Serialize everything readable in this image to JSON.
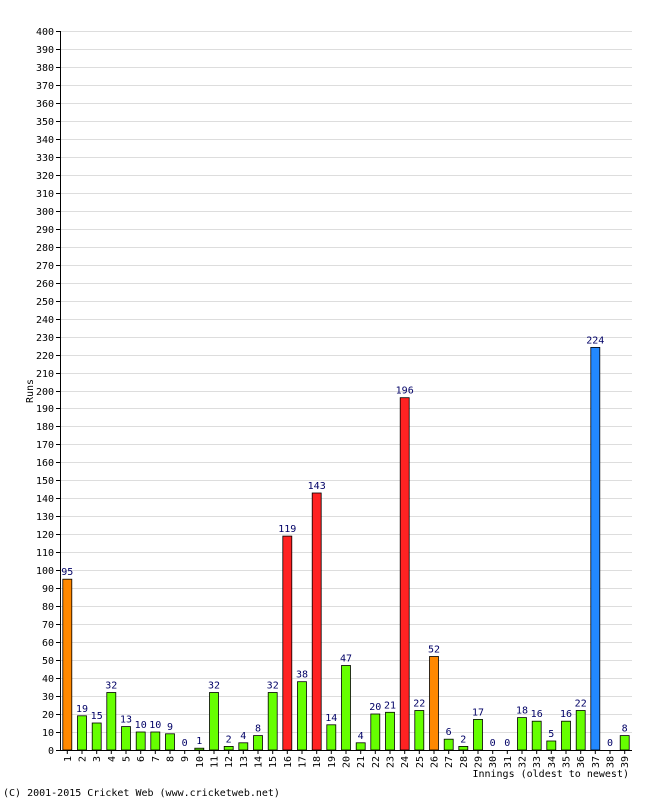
{
  "chart_data": {
    "type": "bar",
    "xlabel": "Innings (oldest to newest)",
    "ylabel": "Runs",
    "ylim": [
      0,
      400
    ],
    "ytick_step": 10,
    "grid": true,
    "categories": [
      "1",
      "2",
      "3",
      "4",
      "5",
      "6",
      "7",
      "8",
      "9",
      "10",
      "11",
      "12",
      "13",
      "14",
      "15",
      "16",
      "17",
      "18",
      "19",
      "20",
      "21",
      "22",
      "23",
      "24",
      "25",
      "26",
      "27",
      "28",
      "29",
      "30",
      "31",
      "32",
      "33",
      "34",
      "35",
      "36",
      "37",
      "38",
      "39"
    ],
    "values": [
      95,
      19,
      15,
      32,
      13,
      10,
      10,
      9,
      0,
      1,
      32,
      2,
      4,
      8,
      32,
      119,
      38,
      143,
      14,
      47,
      4,
      20,
      21,
      196,
      22,
      52,
      6,
      2,
      17,
      0,
      0,
      18,
      16,
      5,
      16,
      22,
      224,
      0,
      8
    ],
    "bar_colors": [
      "#ff8800",
      "#66ff00",
      "#66ff00",
      "#66ff00",
      "#66ff00",
      "#66ff00",
      "#66ff00",
      "#66ff00",
      "#66ff00",
      "#66ff00",
      "#66ff00",
      "#66ff00",
      "#66ff00",
      "#66ff00",
      "#66ff00",
      "#ff2222",
      "#66ff00",
      "#ff2222",
      "#66ff00",
      "#66ff00",
      "#66ff00",
      "#66ff00",
      "#66ff00",
      "#ff2222",
      "#66ff00",
      "#ff8800",
      "#66ff00",
      "#66ff00",
      "#66ff00",
      "#66ff00",
      "#66ff00",
      "#66ff00",
      "#66ff00",
      "#66ff00",
      "#66ff00",
      "#66ff00",
      "#2288ff",
      "#66ff00",
      "#66ff00"
    ]
  },
  "colors": {
    "fifty": "#ff8800",
    "hundred": "#ff2222",
    "double_hundred": "#2288ff",
    "regular": "#66ff00",
    "label": "#000066",
    "grid": "#dddddd"
  },
  "footer": {
    "copyright": "(C) 2001-2015 Cricket Web (www.cricketweb.net)"
  }
}
